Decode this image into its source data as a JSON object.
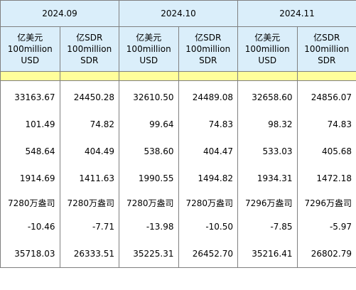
{
  "months": [
    "2024.09",
    "2024.10",
    "2024.11"
  ],
  "units": {
    "usd": [
      "亿美元",
      "100million",
      "USD"
    ],
    "sdr": [
      "亿SDR",
      "100million",
      "SDR"
    ]
  },
  "rows": [
    [
      "33163.67",
      "24450.28",
      "32610.50",
      "24489.08",
      "32658.60",
      "24856.07"
    ],
    [
      "101.49",
      "74.82",
      "99.64",
      "74.83",
      "98.32",
      "74.83"
    ],
    [
      "548.64",
      "404.49",
      "538.60",
      "404.47",
      "533.03",
      "405.68"
    ],
    [
      "1914.69",
      "1411.63",
      "1990.55",
      "1494.82",
      "1934.31",
      "1472.18"
    ],
    [
      "7280万盎司",
      "7280万盎司",
      "7280万盎司",
      "7280万盎司",
      "7296万盎司",
      "7296万盎司"
    ],
    [
      "-10.46",
      "-7.71",
      "-13.98",
      "-10.50",
      "-7.85",
      "-5.97"
    ],
    [
      "35718.03",
      "26333.51",
      "35225.31",
      "26452.70",
      "35216.41",
      "26802.79"
    ]
  ],
  "colors": {
    "header_bg": "#daeefa",
    "separator_bg": "#fffe9b",
    "border": "#808080"
  }
}
